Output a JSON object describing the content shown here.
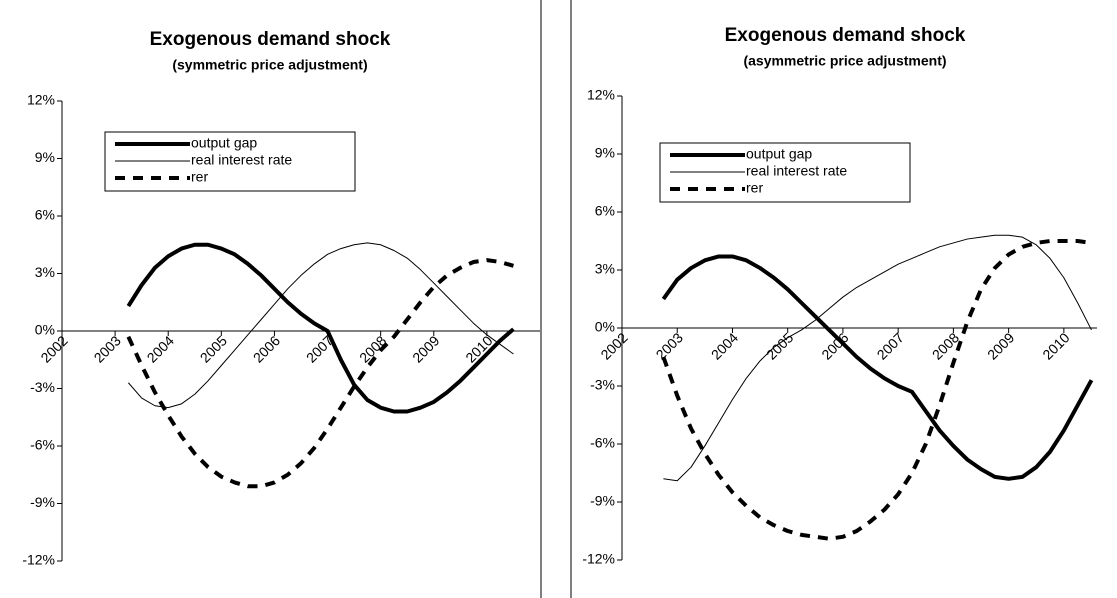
{
  "chart_data": [
    {
      "type": "line",
      "title": "Exogenous demand shock",
      "subtitle": "(symmetric price adjustment)",
      "x": [
        2003.25,
        2003.5,
        2003.75,
        2004,
        2004.25,
        2004.5,
        2004.75,
        2005,
        2005.25,
        2005.5,
        2005.75,
        2006,
        2006.25,
        2006.5,
        2006.75,
        2007,
        2007.25,
        2007.5,
        2007.75,
        2008,
        2008.25,
        2008.5,
        2008.75,
        2009,
        2009.25,
        2009.5,
        2009.75,
        2010,
        2010.25,
        2010.5
      ],
      "xlim": [
        2002,
        2011
      ],
      "xticks": [
        2002,
        2003,
        2004,
        2005,
        2006,
        2007,
        2008,
        2009,
        2010
      ],
      "ylim": [
        -12,
        12
      ],
      "yticks": [
        {
          "value": -12,
          "label": "-12%"
        },
        {
          "value": -9,
          "label": "-9%"
        },
        {
          "value": -6,
          "label": "-6%"
        },
        {
          "value": -3,
          "label": "-3%"
        },
        {
          "value": 0,
          "label": "0%"
        },
        {
          "value": 3,
          "label": "3%"
        },
        {
          "value": 6,
          "label": "6%"
        },
        {
          "value": 9,
          "label": "9%"
        },
        {
          "value": 12,
          "label": "12%"
        }
      ],
      "legend": "upper-left",
      "series": [
        {
          "name": "output gap",
          "color": "#000000",
          "style": "solid",
          "weight": "bold",
          "values": [
            1.3,
            2.4,
            3.3,
            3.9,
            4.3,
            4.5,
            4.5,
            4.3,
            4.0,
            3.5,
            2.9,
            2.2,
            1.5,
            0.9,
            0.4,
            0.0,
            -1.5,
            -2.8,
            -3.6,
            -4.0,
            -4.2,
            -4.2,
            -4.0,
            -3.7,
            -3.2,
            -2.6,
            -1.9,
            -1.2,
            -0.5,
            0.1
          ]
        },
        {
          "name": "real interest rate",
          "color": "#000000",
          "style": "solid",
          "weight": "normal",
          "values": [
            -2.7,
            -3.5,
            -3.9,
            -4.0,
            -3.8,
            -3.3,
            -2.6,
            -1.8,
            -1.0,
            -0.2,
            0.6,
            1.4,
            2.2,
            2.9,
            3.5,
            4.0,
            4.3,
            4.5,
            4.6,
            4.5,
            4.2,
            3.8,
            3.2,
            2.5,
            1.8,
            1.1,
            0.4,
            -0.2,
            -0.7,
            -1.2
          ]
        },
        {
          "name": "rer",
          "color": "#000000",
          "style": "dashed",
          "weight": "bold",
          "values": [
            -0.3,
            -1.8,
            -3.2,
            -4.4,
            -5.5,
            -6.4,
            -7.1,
            -7.6,
            -7.9,
            -8.1,
            -8.1,
            -7.9,
            -7.5,
            -6.9,
            -6.1,
            -5.1,
            -4.0,
            -2.9,
            -1.9,
            -1.0,
            -0.3,
            0.6,
            1.5,
            2.3,
            2.9,
            3.3,
            3.6,
            3.7,
            3.6,
            3.4
          ]
        }
      ]
    },
    {
      "type": "line",
      "title": "Exogenous demand shock",
      "subtitle": "(asymmetric price adjustment)",
      "x": [
        2002.75,
        2003,
        2003.25,
        2003.5,
        2003.75,
        2004,
        2004.25,
        2004.5,
        2004.75,
        2005,
        2005.25,
        2005.5,
        2005.75,
        2006,
        2006.25,
        2006.5,
        2006.75,
        2007,
        2007.25,
        2007.5,
        2007.75,
        2008,
        2008.25,
        2008.5,
        2008.75,
        2009,
        2009.25,
        2009.5,
        2009.75,
        2010,
        2010.25,
        2010.5
      ],
      "xlim": [
        2002,
        2010.6
      ],
      "xticks": [
        2002,
        2003,
        2004,
        2005,
        2006,
        2007,
        2008,
        2009,
        2010
      ],
      "ylim": [
        -12,
        12
      ],
      "yticks": [
        {
          "value": -12,
          "label": "-12%"
        },
        {
          "value": -9,
          "label": "-9%"
        },
        {
          "value": -6,
          "label": "-6%"
        },
        {
          "value": -3,
          "label": "-3%"
        },
        {
          "value": 0,
          "label": "0%"
        },
        {
          "value": 3,
          "label": "3%"
        },
        {
          "value": 6,
          "label": "6%"
        },
        {
          "value": 9,
          "label": "9%"
        },
        {
          "value": 12,
          "label": "12%"
        }
      ],
      "legend": "upper-left",
      "series": [
        {
          "name": "output gap",
          "color": "#000000",
          "style": "solid",
          "weight": "bold",
          "values": [
            1.5,
            2.5,
            3.1,
            3.5,
            3.7,
            3.7,
            3.5,
            3.1,
            2.6,
            2.0,
            1.3,
            0.6,
            -0.1,
            -0.8,
            -1.5,
            -2.1,
            -2.6,
            -3.0,
            -3.3,
            -4.3,
            -5.3,
            -6.1,
            -6.8,
            -7.3,
            -7.7,
            -7.8,
            -7.7,
            -7.2,
            -6.4,
            -5.3,
            -4.0,
            -2.7
          ]
        },
        {
          "name": "real interest rate",
          "color": "#000000",
          "style": "solid",
          "weight": "normal",
          "values": [
            -7.8,
            -7.9,
            -7.2,
            -6.1,
            -4.9,
            -3.7,
            -2.6,
            -1.7,
            -1.0,
            -0.5,
            -0.1,
            0.4,
            1.0,
            1.6,
            2.1,
            2.5,
            2.9,
            3.3,
            3.6,
            3.9,
            4.2,
            4.4,
            4.6,
            4.7,
            4.8,
            4.8,
            4.7,
            4.3,
            3.6,
            2.6,
            1.3,
            -0.1
          ]
        },
        {
          "name": "rer",
          "color": "#000000",
          "style": "dashed",
          "weight": "bold",
          "values": [
            -1.5,
            -3.5,
            -5.2,
            -6.5,
            -7.6,
            -8.5,
            -9.2,
            -9.8,
            -10.2,
            -10.5,
            -10.7,
            -10.8,
            -10.9,
            -10.8,
            -10.5,
            -10.0,
            -9.4,
            -8.6,
            -7.5,
            -6.0,
            -4.0,
            -1.8,
            0.3,
            2.0,
            3.1,
            3.8,
            4.2,
            4.4,
            4.5,
            4.5,
            4.5,
            4.4
          ]
        }
      ]
    }
  ]
}
